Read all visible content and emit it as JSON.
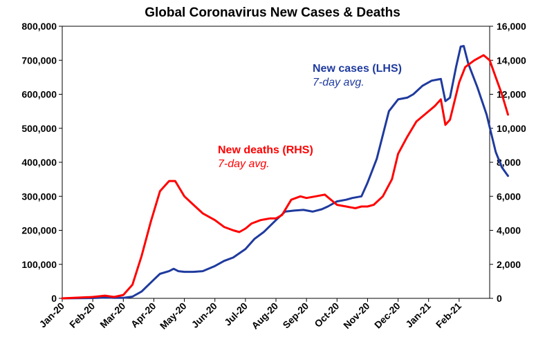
{
  "chart_data": {
    "type": "line",
    "title": "Global Coronavirus New Cases & Deaths",
    "x_tick_labels": [
      "Jan-20",
      "Feb-20",
      "Mar-20",
      "Apr-20",
      "May-20",
      "Jun-20",
      "Jul-20",
      "Aug-20",
      "Sep-20",
      "Oct-20",
      "Nov-20",
      "Dec-20",
      "Jan-21",
      "Feb-21"
    ],
    "y_left": {
      "lim": [
        0,
        800000
      ],
      "ticks": [
        0,
        100000,
        200000,
        300000,
        400000,
        500000,
        600000,
        700000,
        800000
      ],
      "tick_labels": [
        "0",
        "100,000",
        "200,000",
        "300,000",
        "400,000",
        "500,000",
        "600,000",
        "700,000",
        "800,000"
      ]
    },
    "y_right": {
      "lim": [
        0,
        16000
      ],
      "ticks": [
        0,
        2000,
        4000,
        6000,
        8000,
        10000,
        12000,
        14000,
        16000
      ],
      "tick_labels": [
        "0",
        "2,000",
        "4,000",
        "6,000",
        "8,000",
        "10,000",
        "12,000",
        "14,000",
        "16,000"
      ]
    },
    "grid": false,
    "series": [
      {
        "name": "New cases (LHS)",
        "note": "7-day avg.",
        "axis": "left",
        "color": "#1f3a9e",
        "points": [
          [
            0,
            0
          ],
          [
            0.5,
            500
          ],
          [
            1,
            1000
          ],
          [
            1.3,
            2000
          ],
          [
            1.5,
            2500
          ],
          [
            1.7,
            1500
          ],
          [
            2,
            1500
          ],
          [
            2.3,
            5000
          ],
          [
            2.6,
            20000
          ],
          [
            3,
            55000
          ],
          [
            3.2,
            72000
          ],
          [
            3.5,
            80000
          ],
          [
            3.65,
            87000
          ],
          [
            3.8,
            80000
          ],
          [
            4,
            78000
          ],
          [
            4.3,
            78000
          ],
          [
            4.6,
            80000
          ],
          [
            5,
            95000
          ],
          [
            5.3,
            110000
          ],
          [
            5.6,
            120000
          ],
          [
            6,
            145000
          ],
          [
            6.3,
            175000
          ],
          [
            6.6,
            195000
          ],
          [
            7,
            230000
          ],
          [
            7.3,
            255000
          ],
          [
            7.6,
            258000
          ],
          [
            7.9,
            260000
          ],
          [
            8.2,
            255000
          ],
          [
            8.5,
            262000
          ],
          [
            8.7,
            270000
          ],
          [
            9,
            285000
          ],
          [
            9.3,
            290000
          ],
          [
            9.5,
            295000
          ],
          [
            9.8,
            300000
          ],
          [
            10,
            340000
          ],
          [
            10.3,
            410000
          ],
          [
            10.5,
            480000
          ],
          [
            10.7,
            550000
          ],
          [
            11,
            585000
          ],
          [
            11.3,
            590000
          ],
          [
            11.5,
            600000
          ],
          [
            11.8,
            625000
          ],
          [
            12.1,
            640000
          ],
          [
            12.4,
            645000
          ],
          [
            12.55,
            580000
          ],
          [
            12.7,
            590000
          ],
          [
            12.9,
            680000
          ],
          [
            13.05,
            740000
          ],
          [
            13.15,
            742000
          ],
          [
            13.3,
            690000
          ],
          [
            13.6,
            620000
          ],
          [
            13.9,
            540000
          ],
          [
            14.2,
            430000
          ],
          [
            14.4,
            385000
          ],
          [
            14.6,
            360000
          ]
        ]
      },
      {
        "name": "New deaths (RHS)",
        "note": "7-day avg.",
        "axis": "right",
        "color": "#ff0000",
        "points": [
          [
            0,
            0
          ],
          [
            1,
            80
          ],
          [
            1.4,
            160
          ],
          [
            1.7,
            80
          ],
          [
            2,
            200
          ],
          [
            2.3,
            800
          ],
          [
            2.6,
            2500
          ],
          [
            2.9,
            4500
          ],
          [
            3.2,
            6300
          ],
          [
            3.5,
            6900
          ],
          [
            3.7,
            6900
          ],
          [
            4,
            6000
          ],
          [
            4.3,
            5500
          ],
          [
            4.6,
            5000
          ],
          [
            5,
            4600
          ],
          [
            5.3,
            4200
          ],
          [
            5.6,
            4000
          ],
          [
            5.8,
            3900
          ],
          [
            6,
            4100
          ],
          [
            6.2,
            4400
          ],
          [
            6.5,
            4600
          ],
          [
            6.8,
            4700
          ],
          [
            7,
            4700
          ],
          [
            7.2,
            4900
          ],
          [
            7.5,
            5800
          ],
          [
            7.8,
            6000
          ],
          [
            8,
            5900
          ],
          [
            8.3,
            6000
          ],
          [
            8.6,
            6100
          ],
          [
            9,
            5500
          ],
          [
            9.3,
            5400
          ],
          [
            9.6,
            5300
          ],
          [
            9.8,
            5400
          ],
          [
            10,
            5400
          ],
          [
            10.2,
            5500
          ],
          [
            10.5,
            6000
          ],
          [
            10.8,
            7000
          ],
          [
            11,
            8500
          ],
          [
            11.3,
            9500
          ],
          [
            11.6,
            10400
          ],
          [
            12,
            11000
          ],
          [
            12.2,
            11300
          ],
          [
            12.4,
            11700
          ],
          [
            12.55,
            10200
          ],
          [
            12.7,
            10500
          ],
          [
            13,
            12700
          ],
          [
            13.2,
            13600
          ],
          [
            13.5,
            14000
          ],
          [
            13.8,
            14300
          ],
          [
            14,
            14000
          ],
          [
            14.2,
            13000
          ],
          [
            14.4,
            12000
          ],
          [
            14.6,
            10800
          ]
        ]
      }
    ]
  }
}
